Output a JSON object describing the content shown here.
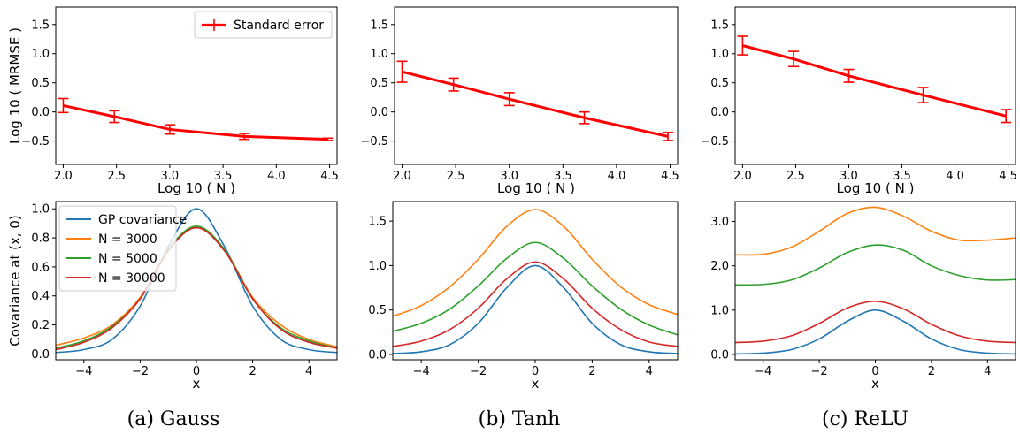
{
  "captions": [
    "(a) Gauss",
    "(b) Tanh",
    "(c) ReLU"
  ],
  "colors": {
    "error": "#ff0000",
    "gp": "#1f77b4",
    "n3000": "#ff7f0e",
    "n5000": "#2ca02c",
    "n30000": "#d62728"
  },
  "chart_data": [
    {
      "type": "line",
      "panel": "top-gauss",
      "xlabel": "Log 10 ( N )",
      "ylabel": "Log 10 ( MRMSE )",
      "xlim": [
        1.93,
        4.57
      ],
      "ylim": [
        -0.9,
        1.8
      ],
      "xticks": [
        2.0,
        2.5,
        3.0,
        3.5,
        4.0,
        4.5
      ],
      "xtick_labels": [
        "2.0",
        "2.5",
        "3.0",
        "3.5",
        "4.0",
        "4.5"
      ],
      "yticks": [
        -0.5,
        0.0,
        0.5,
        1.0,
        1.5
      ],
      "ytick_labels": [
        "−0.5",
        "0.0",
        "0.5",
        "1.0",
        "1.5"
      ],
      "legend": {
        "entries": [
          "Standard error"
        ],
        "placement": "top-right"
      },
      "series": [
        {
          "name": "Standard error",
          "x": [
            2.0,
            2.48,
            3.0,
            3.7,
            4.48
          ],
          "y": [
            0.11,
            -0.08,
            -0.3,
            -0.42,
            -0.47
          ],
          "err": [
            0.12,
            0.1,
            0.08,
            0.05,
            0.02
          ]
        }
      ]
    },
    {
      "type": "line",
      "panel": "top-tanh",
      "xlabel": "Log 10 ( N )",
      "ylabel": "",
      "xlim": [
        1.93,
        4.57
      ],
      "ylim": [
        -0.9,
        1.8
      ],
      "xticks": [
        2.0,
        2.5,
        3.0,
        3.5,
        4.0,
        4.5
      ],
      "xtick_labels": [
        "2.0",
        "2.5",
        "3.0",
        "3.5",
        "4.0",
        "4.5"
      ],
      "yticks": [
        -0.5,
        0.0,
        0.5,
        1.0,
        1.5
      ],
      "ytick_labels": [
        "−0.5",
        "0.0",
        "0.5",
        "1.0",
        "1.5"
      ],
      "series": [
        {
          "name": "",
          "x": [
            2.0,
            2.48,
            3.0,
            3.7,
            4.48
          ],
          "y": [
            0.69,
            0.47,
            0.22,
            -0.1,
            -0.42
          ],
          "err": [
            0.18,
            0.11,
            0.11,
            0.1,
            0.07
          ]
        }
      ]
    },
    {
      "type": "line",
      "panel": "top-relu",
      "xlabel": "Log 10 ( N )",
      "ylabel": "",
      "xlim": [
        1.93,
        4.57
      ],
      "ylim": [
        -0.9,
        1.8
      ],
      "xticks": [
        2.0,
        2.5,
        3.0,
        3.5,
        4.0,
        4.5
      ],
      "xtick_labels": [
        "2.0",
        "2.5",
        "3.0",
        "3.5",
        "4.0",
        "4.5"
      ],
      "yticks": [
        -0.5,
        0.0,
        0.5,
        1.0,
        1.5
      ],
      "ytick_labels": [
        "−0.5",
        "0.0",
        "0.5",
        "1.0",
        "1.5"
      ],
      "series": [
        {
          "name": "",
          "x": [
            2.0,
            2.48,
            3.0,
            3.7,
            4.48
          ],
          "y": [
            1.14,
            0.91,
            0.62,
            0.29,
            -0.07
          ],
          "err": [
            0.16,
            0.13,
            0.11,
            0.13,
            0.11
          ]
        }
      ]
    },
    {
      "type": "line",
      "panel": "bottom-gauss",
      "xlabel": "x",
      "ylabel": "Covariance at (x, 0)",
      "xlim": [
        -5,
        5
      ],
      "ylim": [
        -0.04,
        1.05
      ],
      "xticks": [
        -4,
        -2,
        0,
        2,
        4
      ],
      "xtick_labels": [
        "−4",
        "−2",
        "0",
        "2",
        "4"
      ],
      "yticks": [
        0.0,
        0.2,
        0.4,
        0.6,
        0.8,
        1.0
      ],
      "ytick_labels": [
        "0.0",
        "0.2",
        "0.4",
        "0.6",
        "0.8",
        "1.0"
      ],
      "legend": {
        "entries": [
          "GP covariance",
          "N = 3000",
          "N = 5000",
          "N = 30000"
        ],
        "placement": "top-left"
      },
      "series": [
        {
          "name": "GP covariance",
          "color_key": "gp",
          "x": [
            -5,
            -4,
            -3,
            -2,
            -1,
            0,
            1,
            2,
            3,
            4,
            5
          ],
          "y": [
            0.01,
            0.03,
            0.1,
            0.33,
            0.74,
            1.0,
            0.74,
            0.33,
            0.1,
            0.03,
            0.01
          ]
        },
        {
          "name": "N = 3000",
          "color_key": "n3000",
          "x": [
            -5,
            -4,
            -3,
            -2,
            -1,
            0,
            1,
            2,
            3,
            4,
            5
          ],
          "y": [
            0.06,
            0.11,
            0.2,
            0.39,
            0.72,
            0.88,
            0.72,
            0.39,
            0.2,
            0.1,
            0.05
          ]
        },
        {
          "name": "N = 5000",
          "color_key": "n5000",
          "x": [
            -5,
            -4,
            -3,
            -2,
            -1,
            0,
            1,
            2,
            3,
            4,
            5
          ],
          "y": [
            0.04,
            0.09,
            0.19,
            0.38,
            0.72,
            0.88,
            0.72,
            0.38,
            0.18,
            0.09,
            0.04
          ]
        },
        {
          "name": "N = 30000",
          "color_key": "n30000",
          "x": [
            -5,
            -4,
            -3,
            -2,
            -1,
            0,
            1,
            2,
            3,
            4,
            5
          ],
          "y": [
            0.03,
            0.08,
            0.18,
            0.38,
            0.71,
            0.87,
            0.71,
            0.38,
            0.17,
            0.08,
            0.04
          ]
        }
      ]
    },
    {
      "type": "line",
      "panel": "bottom-tanh",
      "xlabel": "x",
      "ylabel": "",
      "xlim": [
        -5,
        5
      ],
      "ylim": [
        -0.06,
        1.72
      ],
      "xticks": [
        -4,
        -2,
        0,
        2,
        4
      ],
      "xtick_labels": [
        "−4",
        "−2",
        "0",
        "2",
        "4"
      ],
      "yticks": [
        0.0,
        0.5,
        1.0,
        1.5
      ],
      "ytick_labels": [
        "0.0",
        "0.5",
        "1.0",
        "1.5"
      ],
      "series": [
        {
          "name": "",
          "color_key": "gp",
          "x": [
            -5,
            -4,
            -3,
            -2,
            -1,
            0,
            1,
            2,
            3,
            4,
            5
          ],
          "y": [
            0.01,
            0.03,
            0.11,
            0.35,
            0.75,
            1.0,
            0.75,
            0.35,
            0.11,
            0.03,
            0.01
          ]
        },
        {
          "name": "",
          "color_key": "n3000",
          "x": [
            -5,
            -4,
            -3,
            -2,
            -1,
            0,
            1,
            2,
            3,
            4,
            5
          ],
          "y": [
            0.43,
            0.55,
            0.76,
            1.07,
            1.44,
            1.63,
            1.44,
            1.07,
            0.76,
            0.56,
            0.45
          ]
        },
        {
          "name": "",
          "color_key": "n5000",
          "x": [
            -5,
            -4,
            -3,
            -2,
            -1,
            0,
            1,
            2,
            3,
            4,
            5
          ],
          "y": [
            0.26,
            0.35,
            0.51,
            0.77,
            1.08,
            1.26,
            1.08,
            0.77,
            0.51,
            0.33,
            0.22
          ]
        },
        {
          "name": "",
          "color_key": "n30000",
          "x": [
            -5,
            -4,
            -3,
            -2,
            -1,
            0,
            1,
            2,
            3,
            4,
            5
          ],
          "y": [
            0.09,
            0.15,
            0.28,
            0.52,
            0.85,
            1.04,
            0.85,
            0.52,
            0.28,
            0.14,
            0.09
          ]
        }
      ]
    },
    {
      "type": "line",
      "panel": "bottom-relu",
      "xlabel": "x",
      "ylabel": "",
      "xlim": [
        -5,
        5
      ],
      "ylim": [
        -0.12,
        3.45
      ],
      "xticks": [
        -4,
        -2,
        0,
        2,
        4
      ],
      "xtick_labels": [
        "−4",
        "−2",
        "0",
        "2",
        "4"
      ],
      "yticks": [
        0.0,
        1.0,
        2.0,
        3.0
      ],
      "ytick_labels": [
        "0.0",
        "1.0",
        "2.0",
        "3.0"
      ],
      "series": [
        {
          "name": "",
          "color_key": "gp",
          "x": [
            -5,
            -4,
            -3,
            -2,
            -1,
            0,
            1,
            2,
            3,
            4,
            5
          ],
          "y": [
            0.01,
            0.03,
            0.11,
            0.35,
            0.75,
            1.0,
            0.75,
            0.35,
            0.11,
            0.03,
            0.01
          ]
        },
        {
          "name": "",
          "color_key": "n3000",
          "x": [
            -5,
            -4,
            -3,
            -2,
            -1,
            0,
            1,
            2,
            3,
            4,
            5
          ],
          "y": [
            2.25,
            2.26,
            2.42,
            2.78,
            3.18,
            3.32,
            3.12,
            2.78,
            2.58,
            2.58,
            2.63
          ]
        },
        {
          "name": "",
          "color_key": "n5000",
          "x": [
            -5,
            -4,
            -3,
            -2,
            -1,
            0,
            1,
            2,
            3,
            4,
            5
          ],
          "y": [
            1.57,
            1.58,
            1.68,
            1.95,
            2.3,
            2.47,
            2.35,
            2.0,
            1.78,
            1.68,
            1.69
          ]
        },
        {
          "name": "",
          "color_key": "n30000",
          "x": [
            -5,
            -4,
            -3,
            -2,
            -1,
            0,
            1,
            2,
            3,
            4,
            5
          ],
          "y": [
            0.27,
            0.3,
            0.42,
            0.7,
            1.05,
            1.2,
            1.03,
            0.68,
            0.42,
            0.3,
            0.27
          ]
        }
      ]
    }
  ]
}
